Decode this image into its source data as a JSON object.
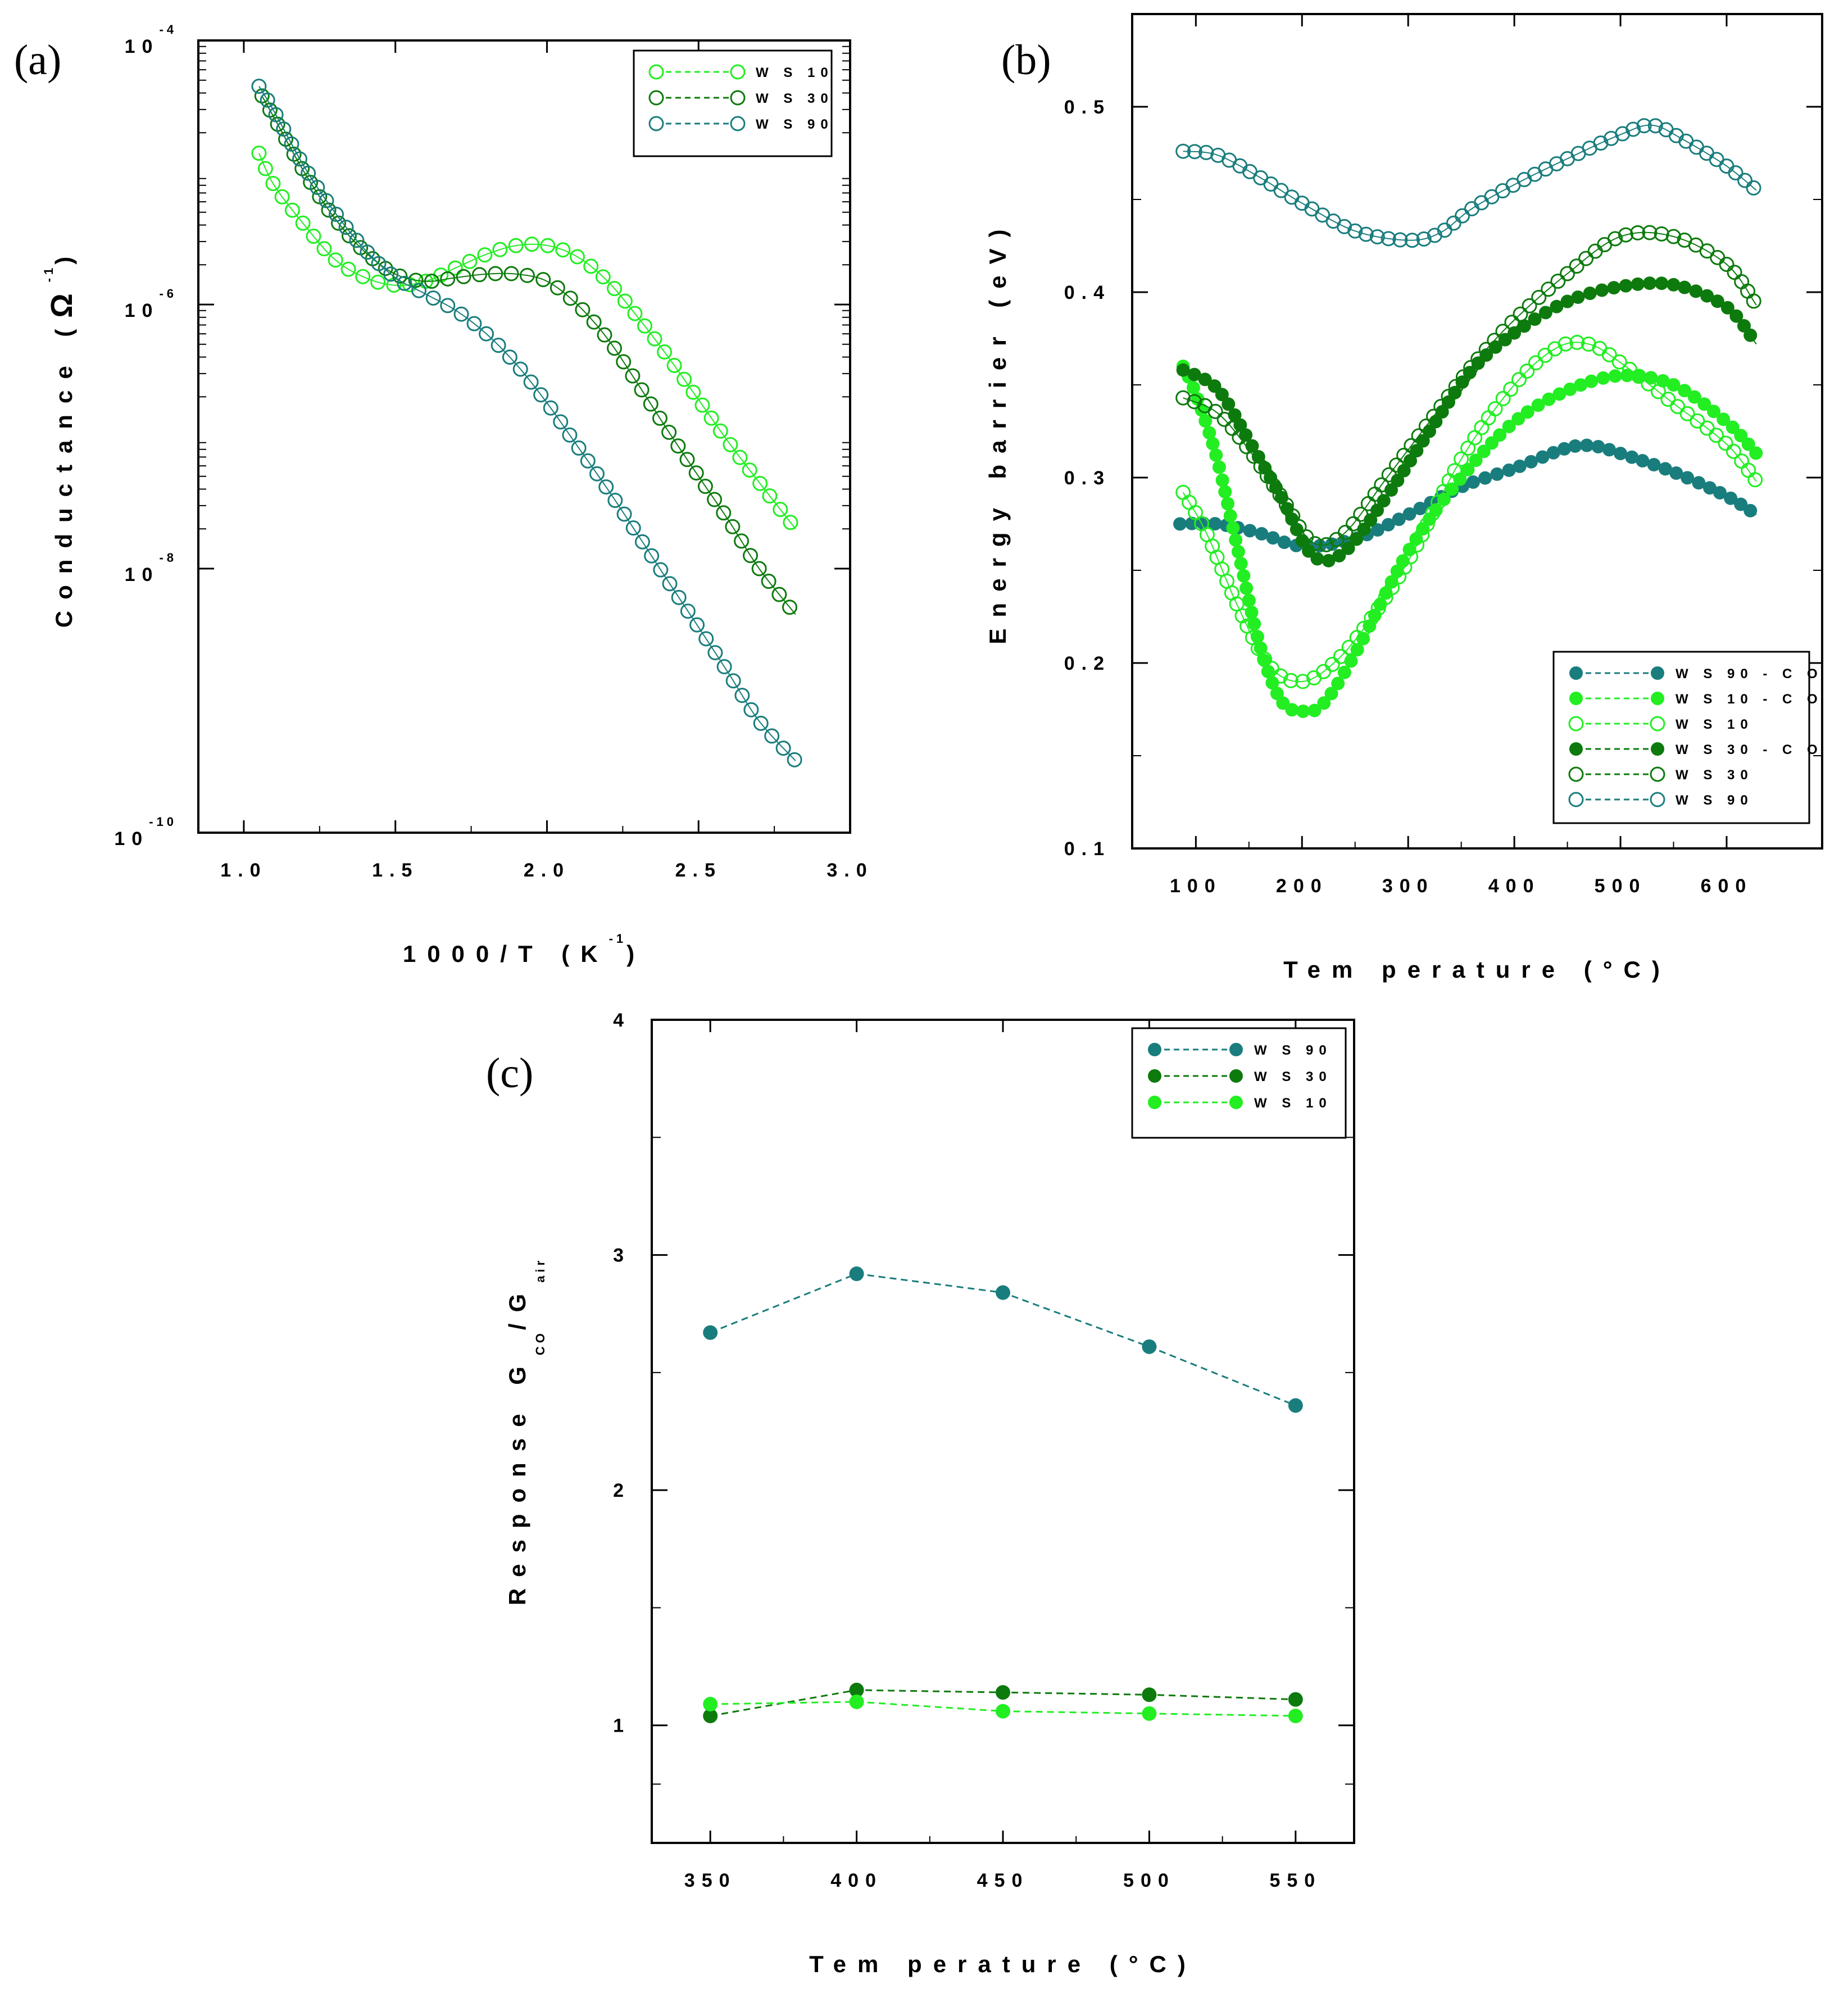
{
  "colors": {
    "ws10": "#22ee22",
    "ws30": "#0d7a0d",
    "ws90": "#1a7d7d"
  },
  "chart_data": [
    {
      "id": "a",
      "panel_label": "(a)",
      "type": "scatter",
      "yscale": "log",
      "xlabel": "1000/T (K",
      "xlabel_sup": "-1",
      "xlabel_end": ")",
      "ylabel": "Conductance (",
      "ylabel_symbol": "Ω",
      "ylabel_sup": "-1",
      "ylabel_end": ")",
      "xlim": [
        0.85,
        3.0
      ],
      "ylim": [
        1e-10,
        0.0001
      ],
      "xticks": [
        {
          "v": 1.0,
          "label": "1.0"
        },
        {
          "v": 1.5,
          "label": "1.5"
        },
        {
          "v": 2.0,
          "label": "2.0"
        },
        {
          "v": 2.5,
          "label": "2.5"
        },
        {
          "v": 3.0,
          "label": "3.0"
        }
      ],
      "yticks": [
        {
          "v": 0.0001,
          "base": "10",
          "exp": "-4"
        },
        {
          "v": 1e-06,
          "base": "10",
          "exp": "-6"
        },
        {
          "v": 1e-08,
          "base": "10",
          "exp": "-8"
        },
        {
          "v": 1e-10,
          "base": "10",
          "exp": "-10"
        }
      ],
      "legend": {
        "position": "top-right"
      },
      "series": [
        {
          "name": "W S 10",
          "key": "ws10",
          "marker": "open",
          "pts": [
            [
              1.05,
              1.4e-05
            ],
            [
              1.1,
              8e-06
            ],
            [
              1.2,
              4e-06
            ],
            [
              1.3,
              2.2e-06
            ],
            [
              1.4,
              1.6e-06
            ],
            [
              1.5,
              1.4e-06
            ],
            [
              1.6,
              1.5e-06
            ],
            [
              1.7,
              1.9e-06
            ],
            [
              1.8,
              2.4e-06
            ],
            [
              1.9,
              2.8e-06
            ],
            [
              2.0,
              2.8e-06
            ],
            [
              2.1,
              2.3e-06
            ],
            [
              2.2,
              1.5e-06
            ],
            [
              2.3,
              8e-07
            ],
            [
              2.4,
              4e-07
            ],
            [
              2.5,
              1.9e-07
            ],
            [
              2.6,
              9e-08
            ],
            [
              2.7,
              4.5e-08
            ],
            [
              2.82,
              2e-08
            ]
          ]
        },
        {
          "name": "W S 30",
          "key": "ws30",
          "marker": "open",
          "pts": [
            [
              1.06,
              3.8e-05
            ],
            [
              1.1,
              2.6e-05
            ],
            [
              1.2,
              1e-05
            ],
            [
              1.3,
              4.5e-06
            ],
            [
              1.4,
              2.5e-06
            ],
            [
              1.5,
              1.7e-06
            ],
            [
              1.6,
              1.5e-06
            ],
            [
              1.7,
              1.6e-06
            ],
            [
              1.8,
              1.7e-06
            ],
            [
              1.9,
              1.7e-06
            ],
            [
              2.0,
              1.5e-06
            ],
            [
              2.1,
              1e-06
            ],
            [
              2.2,
              5.5e-07
            ],
            [
              2.3,
              2.5e-07
            ],
            [
              2.4,
              1.1e-07
            ],
            [
              2.5,
              5e-08
            ],
            [
              2.6,
              2.3e-08
            ],
            [
              2.7,
              1e-08
            ],
            [
              2.82,
              4.5e-09
            ]
          ]
        },
        {
          "name": "W S 90",
          "key": "ws90",
          "marker": "open",
          "pts": [
            [
              1.05,
              4.5e-05
            ],
            [
              1.1,
              2.9e-05
            ],
            [
              1.2,
              1.1e-05
            ],
            [
              1.3,
              5e-06
            ],
            [
              1.4,
              2.6e-06
            ],
            [
              1.5,
              1.6e-06
            ],
            [
              1.6,
              1.2e-06
            ],
            [
              1.7,
              9e-07
            ],
            [
              1.8,
              6e-07
            ],
            [
              1.9,
              3.5e-07
            ],
            [
              2.0,
              1.8e-07
            ],
            [
              2.1,
              8.5e-08
            ],
            [
              2.2,
              4e-08
            ],
            [
              2.3,
              1.8e-08
            ],
            [
              2.4,
              8e-09
            ],
            [
              2.5,
              3.6e-09
            ],
            [
              2.6,
              1.6e-09
            ],
            [
              2.7,
              7e-10
            ],
            [
              2.82,
              3.5e-10
            ]
          ]
        }
      ]
    },
    {
      "id": "b",
      "panel_label": "(b)",
      "type": "scatter",
      "yscale": "linear",
      "xlabel": "Tem perature (°C)",
      "ylabel": "Energy barrier (eV)",
      "xlim": [
        40,
        690
      ],
      "ylim": [
        0.1,
        0.55
      ],
      "xticks": [
        {
          "v": 100,
          "label": "100"
        },
        {
          "v": 200,
          "label": "200"
        },
        {
          "v": 300,
          "label": "300"
        },
        {
          "v": 400,
          "label": "400"
        },
        {
          "v": 500,
          "label": "500"
        },
        {
          "v": 600,
          "label": "600"
        }
      ],
      "yticks": [
        {
          "v": 0.1,
          "label": "0.1"
        },
        {
          "v": 0.2,
          "label": "0.2"
        },
        {
          "v": 0.3,
          "label": "0.3"
        },
        {
          "v": 0.4,
          "label": "0.4"
        },
        {
          "v": 0.5,
          "label": "0.5"
        }
      ],
      "legend": {
        "position": "bottom-right"
      },
      "series": [
        {
          "name": "W S 90 - C O",
          "key": "ws90",
          "marker": "filled",
          "pts": [
            [
              85,
              0.275
            ],
            [
              120,
              0.275
            ],
            [
              160,
              0.27
            ],
            [
              200,
              0.263
            ],
            [
              250,
              0.267
            ],
            [
              300,
              0.28
            ],
            [
              350,
              0.295
            ],
            [
              400,
              0.305
            ],
            [
              450,
              0.316
            ],
            [
              475,
              0.317
            ],
            [
              500,
              0.313
            ],
            [
              550,
              0.303
            ],
            [
              600,
              0.29
            ],
            [
              628,
              0.28
            ]
          ]
        },
        {
          "name": "W S 10 - C O",
          "key": "ws10",
          "marker": "filled",
          "pts": [
            [
              88,
              0.36
            ],
            [
              100,
              0.345
            ],
            [
              120,
              0.31
            ],
            [
              140,
              0.26
            ],
            [
              160,
              0.21
            ],
            [
              180,
              0.18
            ],
            [
              200,
              0.174
            ],
            [
              220,
              0.178
            ],
            [
              250,
              0.205
            ],
            [
              300,
              0.26
            ],
            [
              350,
              0.3
            ],
            [
              400,
              0.33
            ],
            [
              450,
              0.347
            ],
            [
              500,
              0.355
            ],
            [
              550,
              0.35
            ],
            [
              600,
              0.33
            ],
            [
              628,
              0.313
            ]
          ]
        },
        {
          "name": "W S 10",
          "key": "ws10",
          "marker": "open",
          "pts": [
            [
              88,
              0.292
            ],
            [
              110,
              0.27
            ],
            [
              140,
              0.23
            ],
            [
              170,
              0.198
            ],
            [
              200,
              0.19
            ],
            [
              230,
              0.2
            ],
            [
              260,
              0.22
            ],
            [
              300,
              0.255
            ],
            [
              350,
              0.31
            ],
            [
              400,
              0.35
            ],
            [
              440,
              0.37
            ],
            [
              470,
              0.372
            ],
            [
              500,
              0.362
            ],
            [
              550,
              0.34
            ],
            [
              600,
              0.318
            ],
            [
              628,
              0.298
            ]
          ]
        },
        {
          "name": "W S 30 - C O",
          "key": "ws30",
          "marker": "filled",
          "pts": [
            [
              88,
              0.358
            ],
            [
              120,
              0.348
            ],
            [
              150,
              0.32
            ],
            [
              180,
              0.29
            ],
            [
              210,
              0.258
            ],
            [
              240,
              0.26
            ],
            [
              280,
              0.29
            ],
            [
              320,
              0.325
            ],
            [
              360,
              0.358
            ],
            [
              400,
              0.378
            ],
            [
              450,
              0.395
            ],
            [
              500,
              0.403
            ],
            [
              550,
              0.404
            ],
            [
              600,
              0.392
            ],
            [
              628,
              0.372
            ]
          ]
        },
        {
          "name": "W S 30",
          "key": "ws30",
          "marker": "open",
          "pts": [
            [
              88,
              0.343
            ],
            [
              120,
              0.335
            ],
            [
              150,
              0.315
            ],
            [
              180,
              0.29
            ],
            [
              210,
              0.265
            ],
            [
              240,
              0.27
            ],
            [
              280,
              0.3
            ],
            [
              320,
              0.33
            ],
            [
              360,
              0.36
            ],
            [
              400,
              0.385
            ],
            [
              450,
              0.41
            ],
            [
              500,
              0.43
            ],
            [
              550,
              0.43
            ],
            [
              600,
              0.415
            ],
            [
              628,
              0.393
            ]
          ]
        },
        {
          "name": "W S 90",
          "key": "ws90",
          "marker": "open",
          "pts": [
            [
              88,
              0.476
            ],
            [
              120,
              0.474
            ],
            [
              160,
              0.462
            ],
            [
              200,
              0.448
            ],
            [
              250,
              0.433
            ],
            [
              300,
              0.428
            ],
            [
              330,
              0.432
            ],
            [
              360,
              0.445
            ],
            [
              400,
              0.458
            ],
            [
              450,
              0.472
            ],
            [
              500,
              0.485
            ],
            [
              530,
              0.49
            ],
            [
              560,
              0.482
            ],
            [
              600,
              0.468
            ],
            [
              628,
              0.455
            ]
          ]
        }
      ]
    },
    {
      "id": "c",
      "panel_label": "(c)",
      "type": "line",
      "yscale": "linear",
      "xlabel": "Tem perature (°C)",
      "ylabel": "Response G",
      "ylabel_sub1": "CO",
      "ylabel_mid": "/G",
      "ylabel_sub2": "air",
      "xlim": [
        330,
        570
      ],
      "ylim": [
        0.5,
        4.0
      ],
      "xticks": [
        {
          "v": 350,
          "label": "350"
        },
        {
          "v": 400,
          "label": "400"
        },
        {
          "v": 450,
          "label": "450"
        },
        {
          "v": 500,
          "label": "500"
        },
        {
          "v": 550,
          "label": "550"
        }
      ],
      "yticks": [
        {
          "v": 1,
          "label": "1"
        },
        {
          "v": 2,
          "label": "2"
        },
        {
          "v": 3,
          "label": "3"
        },
        {
          "v": 4,
          "label": "4"
        }
      ],
      "legend": {
        "position": "top-right"
      },
      "series": [
        {
          "name": "W S 90",
          "key": "ws90",
          "marker": "filled",
          "x": [
            350,
            400,
            450,
            500,
            550
          ],
          "values": [
            2.67,
            2.92,
            2.84,
            2.61,
            2.36
          ]
        },
        {
          "name": "W S 30",
          "key": "ws30",
          "marker": "filled",
          "x": [
            350,
            400,
            450,
            500,
            550
          ],
          "values": [
            1.04,
            1.15,
            1.14,
            1.13,
            1.11
          ]
        },
        {
          "name": "W S 10",
          "key": "ws10",
          "marker": "filled",
          "x": [
            350,
            400,
            450,
            500,
            550
          ],
          "values": [
            1.09,
            1.1,
            1.06,
            1.05,
            1.04
          ]
        }
      ]
    }
  ]
}
